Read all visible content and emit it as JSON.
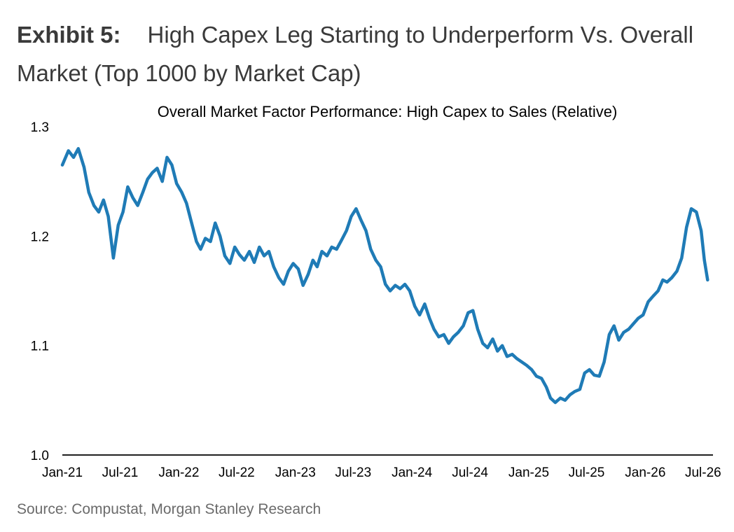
{
  "exhibit": {
    "label": "Exhibit 5:",
    "title": "High Capex Leg Starting to Underperform Vs. Overall Market (Top 1000 by Market Cap)"
  },
  "source": "Source: Compustat, Morgan Stanley Research",
  "chart_data": {
    "type": "line",
    "title": "Overall Market Factor Performance: High Capex to Sales (Relative)",
    "xlabel": "",
    "ylabel": "",
    "xlim": [
      "2021-01",
      "2026-08"
    ],
    "ylim": [
      1.0,
      1.3
    ],
    "yticks": [
      "1.0",
      "1.1",
      "1.2",
      "1.3"
    ],
    "xticks": [
      "Jan-21",
      "Jul-21",
      "Jan-22",
      "Jul-22",
      "Jan-23",
      "Jul-23",
      "Jan-24",
      "Jul-24",
      "Jan-25",
      "Jul-25",
      "Jan-26",
      "Jul-26"
    ],
    "grid": false,
    "line_color": "#1f7bb6",
    "series": [
      {
        "x": [
          "2021-01-01",
          "2021-01-20",
          "2021-02-05",
          "2021-02-20",
          "2021-03-10",
          "2021-03-25",
          "2021-04-10",
          "2021-04-25",
          "2021-05-10",
          "2021-05-25",
          "2021-06-10",
          "2021-06-25",
          "2021-07-10",
          "2021-07-25",
          "2021-08-10",
          "2021-08-25",
          "2021-09-10",
          "2021-09-25",
          "2021-10-10",
          "2021-10-25",
          "2021-11-10",
          "2021-11-25",
          "2021-12-10",
          "2021-12-25",
          "2022-01-10",
          "2022-01-25",
          "2022-02-10",
          "2022-02-25",
          "2022-03-10",
          "2022-03-25",
          "2022-04-10",
          "2022-04-25",
          "2022-05-10",
          "2022-05-25",
          "2022-06-10",
          "2022-06-25",
          "2022-07-10",
          "2022-07-25",
          "2022-08-10",
          "2022-08-25",
          "2022-09-10",
          "2022-09-25",
          "2022-10-10",
          "2022-10-25",
          "2022-11-10",
          "2022-11-25",
          "2022-12-10",
          "2022-12-25",
          "2023-01-10",
          "2023-01-25",
          "2023-02-10",
          "2023-02-25",
          "2023-03-10",
          "2023-03-25",
          "2023-04-10",
          "2023-04-25",
          "2023-05-10",
          "2023-05-25",
          "2023-06-10",
          "2023-06-25",
          "2023-07-10",
          "2023-07-25",
          "2023-08-10",
          "2023-08-25",
          "2023-09-10",
          "2023-09-25",
          "2023-10-10",
          "2023-10-25",
          "2023-11-10",
          "2023-11-25",
          "2023-12-10",
          "2023-12-25",
          "2024-01-10",
          "2024-01-25",
          "2024-02-10",
          "2024-02-25",
          "2024-03-10",
          "2024-03-25",
          "2024-04-10",
          "2024-04-25",
          "2024-05-10",
          "2024-05-25",
          "2024-06-10",
          "2024-06-25",
          "2024-07-10",
          "2024-07-25",
          "2024-08-10",
          "2024-08-25",
          "2024-09-10",
          "2024-09-25",
          "2024-10-10",
          "2024-10-25",
          "2024-11-10",
          "2024-11-25",
          "2024-12-10",
          "2024-12-25",
          "2025-01-10",
          "2025-01-25",
          "2025-02-10",
          "2025-02-25",
          "2025-03-10",
          "2025-03-25",
          "2025-04-10",
          "2025-04-25",
          "2025-05-10",
          "2025-05-25",
          "2025-06-10",
          "2025-06-25",
          "2025-07-10",
          "2025-07-25",
          "2025-08-10",
          "2025-08-25",
          "2025-09-10",
          "2025-09-25",
          "2025-10-10",
          "2025-10-25",
          "2025-11-10",
          "2025-11-25",
          "2025-12-10",
          "2025-12-25",
          "2026-01-10",
          "2026-01-25",
          "2026-02-10",
          "2026-02-25",
          "2026-03-10",
          "2026-03-25",
          "2026-04-10",
          "2026-04-25",
          "2026-05-10",
          "2026-05-25",
          "2026-06-10",
          "2026-06-25",
          "2026-07-05",
          "2026-07-15"
        ],
        "values": [
          1.265,
          1.278,
          1.272,
          1.28,
          1.263,
          1.24,
          1.228,
          1.222,
          1.233,
          1.218,
          1.18,
          1.21,
          1.222,
          1.245,
          1.235,
          1.228,
          1.24,
          1.252,
          1.258,
          1.262,
          1.25,
          1.272,
          1.265,
          1.248,
          1.24,
          1.23,
          1.212,
          1.195,
          1.188,
          1.198,
          1.195,
          1.212,
          1.2,
          1.182,
          1.175,
          1.19,
          1.183,
          1.178,
          1.186,
          1.176,
          1.19,
          1.182,
          1.186,
          1.172,
          1.162,
          1.156,
          1.168,
          1.175,
          1.17,
          1.155,
          1.165,
          1.178,
          1.172,
          1.186,
          1.182,
          1.19,
          1.188,
          1.196,
          1.205,
          1.218,
          1.225,
          1.215,
          1.205,
          1.188,
          1.178,
          1.172,
          1.156,
          1.15,
          1.155,
          1.152,
          1.156,
          1.15,
          1.136,
          1.128,
          1.138,
          1.125,
          1.115,
          1.108,
          1.11,
          1.102,
          1.108,
          1.112,
          1.118,
          1.13,
          1.132,
          1.115,
          1.102,
          1.098,
          1.106,
          1.095,
          1.1,
          1.09,
          1.092,
          1.088,
          1.085,
          1.082,
          1.078,
          1.072,
          1.07,
          1.062,
          1.052,
          1.048,
          1.052,
          1.05,
          1.055,
          1.058,
          1.06,
          1.075,
          1.078,
          1.073,
          1.072,
          1.085,
          1.11,
          1.118,
          1.105,
          1.112,
          1.115,
          1.12,
          1.125,
          1.128,
          1.14,
          1.145,
          1.15,
          1.16,
          1.158,
          1.162,
          1.168,
          1.18,
          1.208,
          1.225,
          1.222,
          1.205,
          1.178,
          1.16
        ]
      }
    ]
  }
}
